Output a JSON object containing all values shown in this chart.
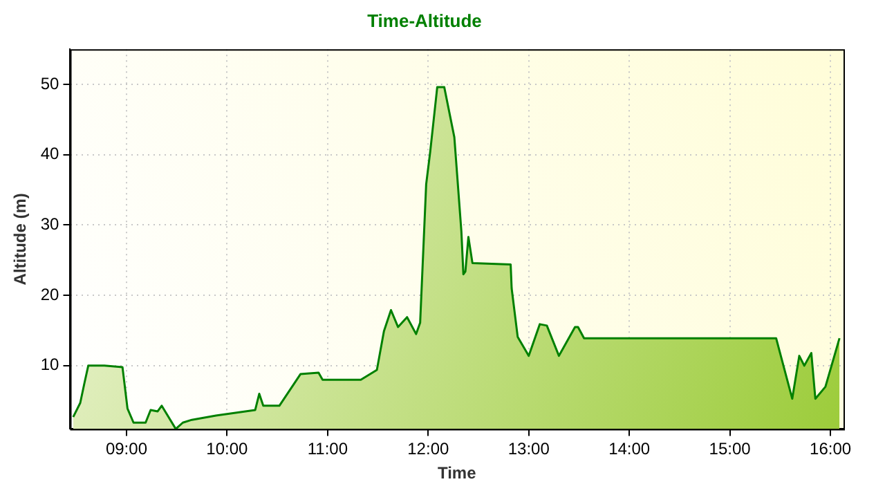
{
  "chart_data": {
    "type": "area",
    "title": "Time-Altitude",
    "xlabel": "Time",
    "ylabel": "Altitude (m)",
    "xlim": [
      8.44,
      16.13
    ],
    "xticks": [
      {
        "value": 9,
        "label": "09:00"
      },
      {
        "value": 10,
        "label": "10:00"
      },
      {
        "value": 11,
        "label": "11:00"
      },
      {
        "value": 12,
        "label": "12:00"
      },
      {
        "value": 13,
        "label": "13:00"
      },
      {
        "value": 14,
        "label": "14:00"
      },
      {
        "value": 15,
        "label": "15:00"
      },
      {
        "value": 16,
        "label": "16:00"
      }
    ],
    "ylim": [
      1,
      55
    ],
    "yticks": [
      10,
      20,
      30,
      40,
      50
    ],
    "grid": true,
    "legend": false,
    "marker": "none",
    "line_style": "solid",
    "series": [
      {
        "color": "#008000",
        "x": [
          8.47,
          8.54,
          8.58,
          8.62,
          8.78,
          8.96,
          9.01,
          9.07,
          9.19,
          9.24,
          9.31,
          9.35,
          9.49,
          9.56,
          9.65,
          9.89,
          10.28,
          10.32,
          10.36,
          10.52,
          10.73,
          10.91,
          10.95,
          11.33,
          11.49,
          11.56,
          11.63,
          11.7,
          11.79,
          11.88,
          11.92,
          11.98,
          12.02,
          12.09,
          12.16,
          12.26,
          12.33,
          12.35,
          12.37,
          12.4,
          12.44,
          12.82,
          12.83,
          12.89,
          13.0,
          13.11,
          13.18,
          13.3,
          13.46,
          13.49,
          13.55,
          15.46,
          15.62,
          15.69,
          15.74,
          15.81,
          15.85,
          15.95,
          16.09
        ],
        "values": [
          2.7,
          4.7,
          7.4,
          10,
          10,
          9.8,
          3.9,
          1.9,
          1.9,
          3.7,
          3.5,
          4.3,
          1,
          1.9,
          2.3,
          2.9,
          3.7,
          6,
          4.3,
          4.3,
          8.8,
          9,
          8,
          8,
          9.4,
          14.9,
          17.9,
          15.5,
          16.9,
          14.5,
          16.1,
          35.8,
          40.4,
          49.6,
          49.6,
          42.5,
          29.1,
          23,
          23.4,
          28.3,
          24.6,
          24.4,
          21,
          14.1,
          11.4,
          15.9,
          15.7,
          11.4,
          15.5,
          15.5,
          13.9,
          13.9,
          5.3,
          11.4,
          10,
          11.8,
          5.3,
          7,
          13.9
        ]
      }
    ]
  }
}
